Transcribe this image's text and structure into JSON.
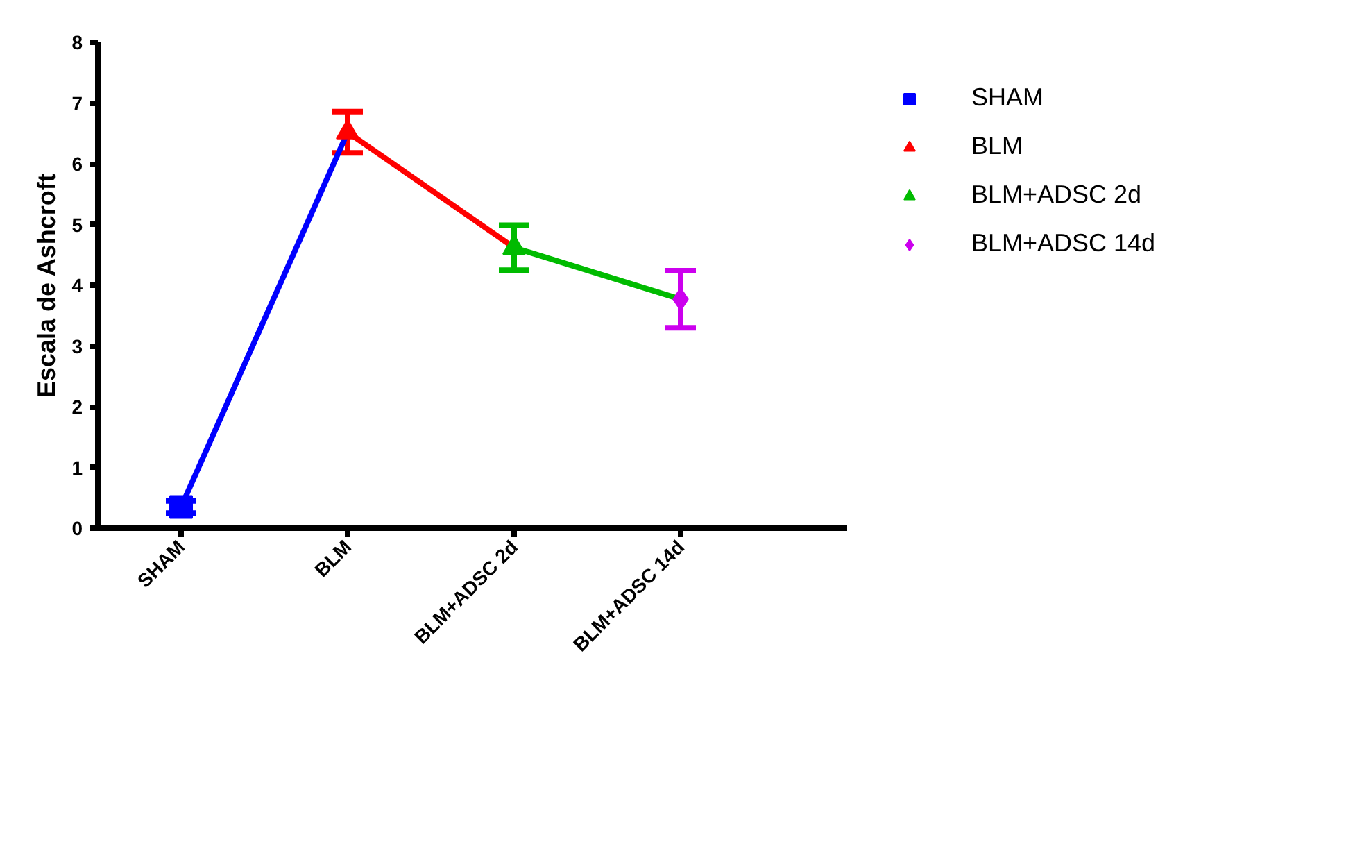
{
  "chart_data": {
    "type": "scatter",
    "ylabel": "Escala de Ashcroft",
    "categories": [
      "SHAM",
      "BLM",
      "BLM+ADSC 2d",
      "BLM+ADSC 14d"
    ],
    "ylim": [
      0,
      8
    ],
    "yticks": [
      0,
      1,
      2,
      3,
      4,
      5,
      6,
      7,
      8
    ],
    "grid": false,
    "legend": "right",
    "series": [
      {
        "type": "line",
        "color": "#0000ff",
        "values": [
          0.35,
          6.52,
          null,
          null
        ]
      },
      {
        "type": "line",
        "color": "#ff0000",
        "values": [
          null,
          6.52,
          4.62,
          null
        ]
      },
      {
        "type": "line",
        "color": "#00bb00",
        "values": [
          null,
          null,
          4.62,
          3.77
        ]
      },
      {
        "name": "SHAM",
        "marker": "square",
        "color": "#0000ff",
        "values": [
          0.35,
          null,
          null,
          null
        ],
        "errors": [
          0.1,
          null,
          null,
          null
        ]
      },
      {
        "name": "BLM",
        "marker": "triangle",
        "color": "#ff0000",
        "values": [
          null,
          6.52,
          null,
          null
        ],
        "errors": [
          null,
          0.34,
          null,
          null
        ]
      },
      {
        "name": "BLM+ADSC 2d",
        "marker": "triangle",
        "color": "#00bb00",
        "values": [
          null,
          null,
          4.62,
          null
        ],
        "errors": [
          null,
          null,
          0.37,
          null
        ]
      },
      {
        "name": "BLM+ADSC 14d",
        "marker": "diamond",
        "color": "#cc00ee",
        "values": [
          null,
          null,
          null,
          3.77
        ],
        "errors": [
          null,
          null,
          null,
          0.47
        ]
      }
    ]
  }
}
